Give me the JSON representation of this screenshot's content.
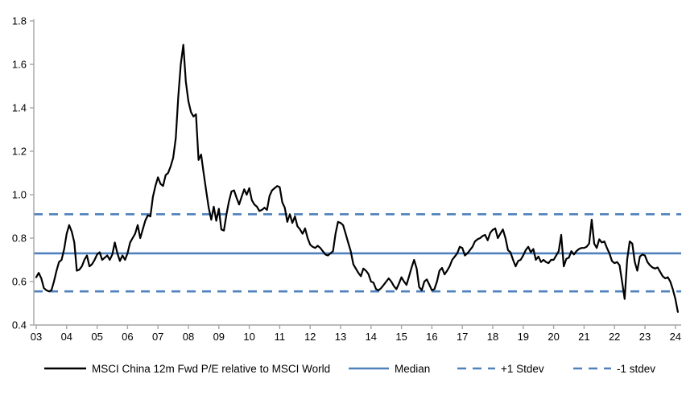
{
  "chart_data": {
    "type": "line",
    "title": "",
    "x_start": "2003-01",
    "frequency": "monthly",
    "x_tick_labels": [
      "03",
      "04",
      "05",
      "06",
      "07",
      "08",
      "09",
      "10",
      "11",
      "12",
      "13",
      "14",
      "15",
      "16",
      "17",
      "18",
      "19",
      "20",
      "21",
      "22",
      "23",
      "24"
    ],
    "y_ticks": [
      "1.8",
      "1.6",
      "1.4",
      "1.2",
      "1.0",
      "0.8",
      "0.6",
      "0.4"
    ],
    "ylim": [
      0.4,
      1.8
    ],
    "grid": false,
    "legend_position": "bottom",
    "series": [
      {
        "name": "MSCI China 12m Fwd P/E relative to MSCI World",
        "style": "solid",
        "values": [
          0.62,
          0.64,
          0.615,
          0.57,
          0.56,
          0.555,
          0.56,
          0.6,
          0.65,
          0.69,
          0.7,
          0.75,
          0.82,
          0.86,
          0.83,
          0.78,
          0.65,
          0.655,
          0.67,
          0.7,
          0.72,
          0.67,
          0.68,
          0.7,
          0.725,
          0.735,
          0.7,
          0.71,
          0.72,
          0.7,
          0.725,
          0.78,
          0.73,
          0.695,
          0.72,
          0.7,
          0.73,
          0.78,
          0.8,
          0.82,
          0.86,
          0.8,
          0.84,
          0.88,
          0.905,
          0.9,
          0.99,
          1.04,
          1.08,
          1.05,
          1.04,
          1.09,
          1.1,
          1.13,
          1.17,
          1.26,
          1.45,
          1.6,
          1.69,
          1.52,
          1.43,
          1.38,
          1.36,
          1.37,
          1.16,
          1.185,
          1.1,
          1.02,
          0.94,
          0.885,
          0.945,
          0.88,
          0.935,
          0.84,
          0.835,
          0.91,
          0.97,
          1.015,
          1.02,
          0.985,
          0.955,
          0.99,
          1.025,
          1.0,
          1.03,
          0.975,
          0.955,
          0.945,
          0.925,
          0.93,
          0.94,
          0.93,
          0.995,
          1.02,
          1.03,
          1.04,
          1.035,
          0.965,
          0.94,
          0.875,
          0.91,
          0.87,
          0.9,
          0.855,
          0.84,
          0.82,
          0.845,
          0.8,
          0.77,
          0.76,
          0.755,
          0.765,
          0.755,
          0.74,
          0.725,
          0.72,
          0.73,
          0.74,
          0.82,
          0.875,
          0.87,
          0.86,
          0.82,
          0.78,
          0.74,
          0.68,
          0.66,
          0.64,
          0.625,
          0.66,
          0.65,
          0.635,
          0.6,
          0.595,
          0.565,
          0.56,
          0.57,
          0.585,
          0.6,
          0.615,
          0.6,
          0.58,
          0.565,
          0.59,
          0.62,
          0.6,
          0.585,
          0.625,
          0.665,
          0.7,
          0.66,
          0.575,
          0.56,
          0.6,
          0.61,
          0.585,
          0.56,
          0.565,
          0.6,
          0.65,
          0.663,
          0.633,
          0.65,
          0.67,
          0.7,
          0.715,
          0.73,
          0.76,
          0.755,
          0.72,
          0.73,
          0.745,
          0.76,
          0.785,
          0.795,
          0.8,
          0.81,
          0.815,
          0.79,
          0.825,
          0.838,
          0.845,
          0.8,
          0.82,
          0.84,
          0.8,
          0.745,
          0.735,
          0.7,
          0.67,
          0.695,
          0.7,
          0.72,
          0.745,
          0.76,
          0.735,
          0.75,
          0.7,
          0.715,
          0.69,
          0.7,
          0.69,
          0.685,
          0.7,
          0.7,
          0.72,
          0.74,
          0.815,
          0.67,
          0.705,
          0.71,
          0.74,
          0.725,
          0.74,
          0.75,
          0.755,
          0.755,
          0.76,
          0.775,
          0.885,
          0.775,
          0.755,
          0.795,
          0.78,
          0.785,
          0.755,
          0.73,
          0.695,
          0.685,
          0.69,
          0.675,
          0.6,
          0.52,
          0.7,
          0.785,
          0.775,
          0.69,
          0.65,
          0.715,
          0.725,
          0.72,
          0.69,
          0.675,
          0.665,
          0.66,
          0.665,
          0.645,
          0.625,
          0.615,
          0.62,
          0.6,
          0.565,
          0.52,
          0.46
        ]
      }
    ],
    "reference_lines": [
      {
        "name": "Median",
        "value": 0.73,
        "style": "solid"
      },
      {
        "name": "+1 Stdev",
        "value": 0.91,
        "style": "dashed"
      },
      {
        "name": "-1 stdev",
        "value": 0.555,
        "style": "dashed"
      }
    ]
  },
  "legend": {
    "items": [
      {
        "label": "MSCI China 12m Fwd P/E relative to MSCI World",
        "swatch": "solid-black"
      },
      {
        "label": "Median",
        "swatch": "solid-blue"
      },
      {
        "label": "+1 Stdev",
        "swatch": "dashed-blue"
      },
      {
        "label": "-1 stdev",
        "swatch": "dashed-blue"
      }
    ]
  },
  "colors": {
    "series": "#000000",
    "reference": "#4f81bd",
    "axis": "#a6a6a6",
    "text": "#000000",
    "background": "#ffffff"
  }
}
